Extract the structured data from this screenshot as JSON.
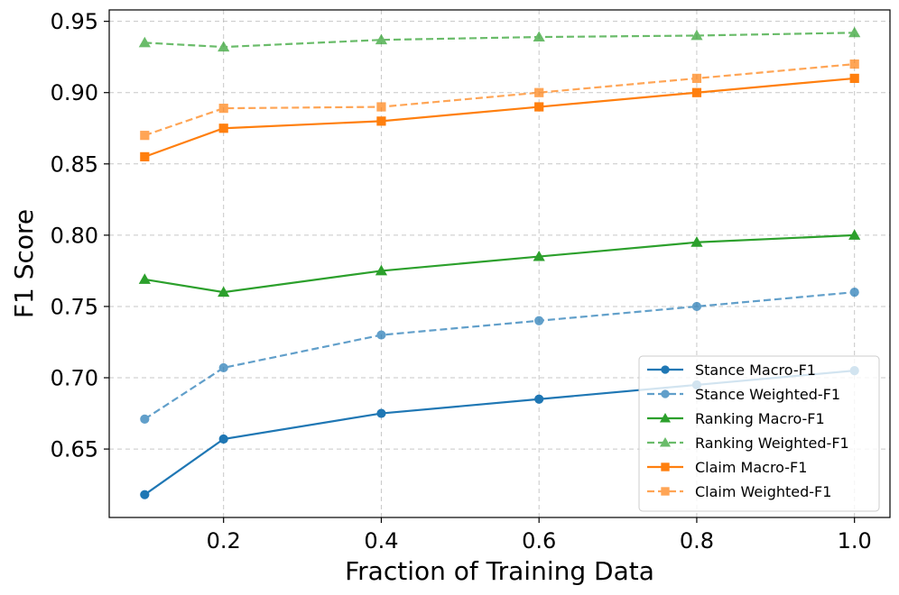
{
  "chart_data": {
    "type": "line",
    "title": "",
    "xlabel": "Fraction of Training Data",
    "ylabel": "F1 Score",
    "x": [
      0.1,
      0.2,
      0.4,
      0.6,
      0.8,
      1.0
    ],
    "xlim": [
      0.055,
      1.045
    ],
    "ylim": [
      0.602,
      0.958
    ],
    "xticks": [
      0.2,
      0.4,
      0.6,
      0.8,
      1.0
    ],
    "xtick_labels": [
      "0.2",
      "0.4",
      "0.6",
      "0.8",
      "1.0"
    ],
    "yticks": [
      0.65,
      0.7,
      0.75,
      0.8,
      0.85,
      0.9,
      0.95
    ],
    "ytick_labels": [
      "0.65",
      "0.70",
      "0.75",
      "0.80",
      "0.85",
      "0.90",
      "0.95"
    ],
    "grid": true,
    "legend_position": "lower-right",
    "series": [
      {
        "name": "Stance Macro-F1",
        "values": [
          0.618,
          0.657,
          0.675,
          0.685,
          0.695,
          0.705
        ],
        "color": "#1f77b4",
        "marker": "circle",
        "dashed": false,
        "alpha": 1.0
      },
      {
        "name": "Stance Weighted-F1",
        "values": [
          0.671,
          0.707,
          0.73,
          0.74,
          0.75,
          0.76
        ],
        "color": "#1f77b4",
        "marker": "circle",
        "dashed": true,
        "alpha": 0.7
      },
      {
        "name": "Ranking Macro-F1",
        "values": [
          0.769,
          0.76,
          0.775,
          0.785,
          0.795,
          0.8
        ],
        "color": "#2ca02c",
        "marker": "triangle",
        "dashed": false,
        "alpha": 1.0
      },
      {
        "name": "Ranking Weighted-F1",
        "values": [
          0.935,
          0.932,
          0.937,
          0.939,
          0.94,
          0.942
        ],
        "color": "#2ca02c",
        "marker": "triangle",
        "dashed": true,
        "alpha": 0.7
      },
      {
        "name": "Claim Macro-F1",
        "values": [
          0.855,
          0.875,
          0.88,
          0.89,
          0.9,
          0.91
        ],
        "color": "#ff7f0e",
        "marker": "square",
        "dashed": false,
        "alpha": 1.0
      },
      {
        "name": "Claim Weighted-F1",
        "values": [
          0.87,
          0.889,
          0.89,
          0.9,
          0.91,
          0.92
        ],
        "color": "#ff7f0e",
        "marker": "square",
        "dashed": true,
        "alpha": 0.7
      }
    ]
  }
}
